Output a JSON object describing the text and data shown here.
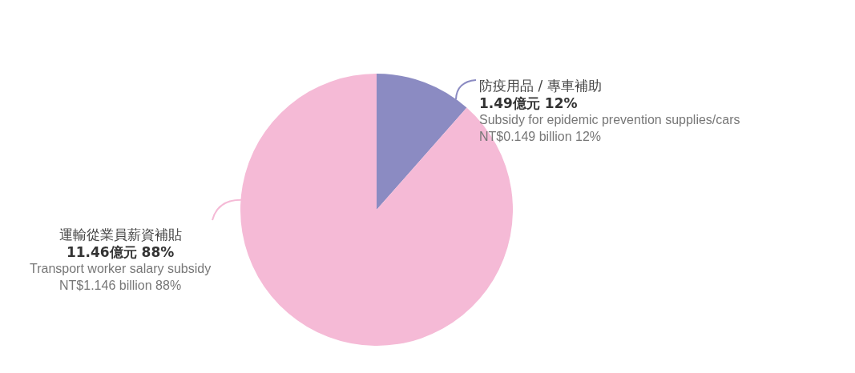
{
  "chart_data": {
    "type": "pie",
    "categories": [
      "防疫用品 / 專車補助",
      "運輸從業員薪資補貼"
    ],
    "values": [
      1.49,
      11.46
    ],
    "colors": [
      "#8b8bc2",
      "#f5bad6"
    ],
    "value_labels": [
      "1.49億元 12%",
      "11.46億元 88%"
    ],
    "annotations": [
      "Subsidy for epidemic prevention supplies/cars",
      "NT$0.149 billion 12%",
      "Transport worker salary subsidy",
      "NT$1.146 billion  88%"
    ],
    "legend": false
  }
}
